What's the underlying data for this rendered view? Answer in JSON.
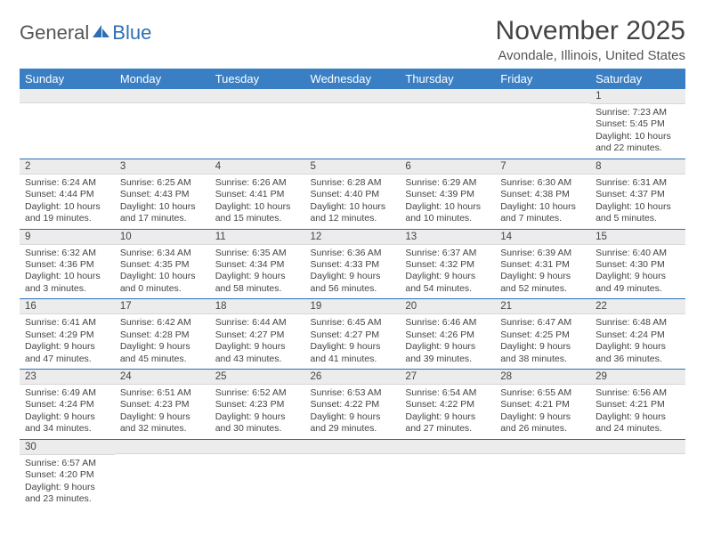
{
  "logo": {
    "part1": "General",
    "part2": "Blue"
  },
  "title": "November 2025",
  "location": "Avondale, Illinois, United States",
  "colors": {
    "header_bg": "#3a7fc4",
    "header_text": "#ffffff",
    "daynum_bg": "#ececec",
    "row_divider": "#2c6fb5",
    "logo_blue": "#2c6fb5"
  },
  "day_names": [
    "Sunday",
    "Monday",
    "Tuesday",
    "Wednesday",
    "Thursday",
    "Friday",
    "Saturday"
  ],
  "weeks": [
    [
      {
        "n": "",
        "sr": "",
        "ss": "",
        "dl": ""
      },
      {
        "n": "",
        "sr": "",
        "ss": "",
        "dl": ""
      },
      {
        "n": "",
        "sr": "",
        "ss": "",
        "dl": ""
      },
      {
        "n": "",
        "sr": "",
        "ss": "",
        "dl": ""
      },
      {
        "n": "",
        "sr": "",
        "ss": "",
        "dl": ""
      },
      {
        "n": "",
        "sr": "",
        "ss": "",
        "dl": ""
      },
      {
        "n": "1",
        "sr": "Sunrise: 7:23 AM",
        "ss": "Sunset: 5:45 PM",
        "dl": "Daylight: 10 hours and 22 minutes."
      }
    ],
    [
      {
        "n": "2",
        "sr": "Sunrise: 6:24 AM",
        "ss": "Sunset: 4:44 PM",
        "dl": "Daylight: 10 hours and 19 minutes."
      },
      {
        "n": "3",
        "sr": "Sunrise: 6:25 AM",
        "ss": "Sunset: 4:43 PM",
        "dl": "Daylight: 10 hours and 17 minutes."
      },
      {
        "n": "4",
        "sr": "Sunrise: 6:26 AM",
        "ss": "Sunset: 4:41 PM",
        "dl": "Daylight: 10 hours and 15 minutes."
      },
      {
        "n": "5",
        "sr": "Sunrise: 6:28 AM",
        "ss": "Sunset: 4:40 PM",
        "dl": "Daylight: 10 hours and 12 minutes."
      },
      {
        "n": "6",
        "sr": "Sunrise: 6:29 AM",
        "ss": "Sunset: 4:39 PM",
        "dl": "Daylight: 10 hours and 10 minutes."
      },
      {
        "n": "7",
        "sr": "Sunrise: 6:30 AM",
        "ss": "Sunset: 4:38 PM",
        "dl": "Daylight: 10 hours and 7 minutes."
      },
      {
        "n": "8",
        "sr": "Sunrise: 6:31 AM",
        "ss": "Sunset: 4:37 PM",
        "dl": "Daylight: 10 hours and 5 minutes."
      }
    ],
    [
      {
        "n": "9",
        "sr": "Sunrise: 6:32 AM",
        "ss": "Sunset: 4:36 PM",
        "dl": "Daylight: 10 hours and 3 minutes."
      },
      {
        "n": "10",
        "sr": "Sunrise: 6:34 AM",
        "ss": "Sunset: 4:35 PM",
        "dl": "Daylight: 10 hours and 0 minutes."
      },
      {
        "n": "11",
        "sr": "Sunrise: 6:35 AM",
        "ss": "Sunset: 4:34 PM",
        "dl": "Daylight: 9 hours and 58 minutes."
      },
      {
        "n": "12",
        "sr": "Sunrise: 6:36 AM",
        "ss": "Sunset: 4:33 PM",
        "dl": "Daylight: 9 hours and 56 minutes."
      },
      {
        "n": "13",
        "sr": "Sunrise: 6:37 AM",
        "ss": "Sunset: 4:32 PM",
        "dl": "Daylight: 9 hours and 54 minutes."
      },
      {
        "n": "14",
        "sr": "Sunrise: 6:39 AM",
        "ss": "Sunset: 4:31 PM",
        "dl": "Daylight: 9 hours and 52 minutes."
      },
      {
        "n": "15",
        "sr": "Sunrise: 6:40 AM",
        "ss": "Sunset: 4:30 PM",
        "dl": "Daylight: 9 hours and 49 minutes."
      }
    ],
    [
      {
        "n": "16",
        "sr": "Sunrise: 6:41 AM",
        "ss": "Sunset: 4:29 PM",
        "dl": "Daylight: 9 hours and 47 minutes."
      },
      {
        "n": "17",
        "sr": "Sunrise: 6:42 AM",
        "ss": "Sunset: 4:28 PM",
        "dl": "Daylight: 9 hours and 45 minutes."
      },
      {
        "n": "18",
        "sr": "Sunrise: 6:44 AM",
        "ss": "Sunset: 4:27 PM",
        "dl": "Daylight: 9 hours and 43 minutes."
      },
      {
        "n": "19",
        "sr": "Sunrise: 6:45 AM",
        "ss": "Sunset: 4:27 PM",
        "dl": "Daylight: 9 hours and 41 minutes."
      },
      {
        "n": "20",
        "sr": "Sunrise: 6:46 AM",
        "ss": "Sunset: 4:26 PM",
        "dl": "Daylight: 9 hours and 39 minutes."
      },
      {
        "n": "21",
        "sr": "Sunrise: 6:47 AM",
        "ss": "Sunset: 4:25 PM",
        "dl": "Daylight: 9 hours and 38 minutes."
      },
      {
        "n": "22",
        "sr": "Sunrise: 6:48 AM",
        "ss": "Sunset: 4:24 PM",
        "dl": "Daylight: 9 hours and 36 minutes."
      }
    ],
    [
      {
        "n": "23",
        "sr": "Sunrise: 6:49 AM",
        "ss": "Sunset: 4:24 PM",
        "dl": "Daylight: 9 hours and 34 minutes."
      },
      {
        "n": "24",
        "sr": "Sunrise: 6:51 AM",
        "ss": "Sunset: 4:23 PM",
        "dl": "Daylight: 9 hours and 32 minutes."
      },
      {
        "n": "25",
        "sr": "Sunrise: 6:52 AM",
        "ss": "Sunset: 4:23 PM",
        "dl": "Daylight: 9 hours and 30 minutes."
      },
      {
        "n": "26",
        "sr": "Sunrise: 6:53 AM",
        "ss": "Sunset: 4:22 PM",
        "dl": "Daylight: 9 hours and 29 minutes."
      },
      {
        "n": "27",
        "sr": "Sunrise: 6:54 AM",
        "ss": "Sunset: 4:22 PM",
        "dl": "Daylight: 9 hours and 27 minutes."
      },
      {
        "n": "28",
        "sr": "Sunrise: 6:55 AM",
        "ss": "Sunset: 4:21 PM",
        "dl": "Daylight: 9 hours and 26 minutes."
      },
      {
        "n": "29",
        "sr": "Sunrise: 6:56 AM",
        "ss": "Sunset: 4:21 PM",
        "dl": "Daylight: 9 hours and 24 minutes."
      }
    ],
    [
      {
        "n": "30",
        "sr": "Sunrise: 6:57 AM",
        "ss": "Sunset: 4:20 PM",
        "dl": "Daylight: 9 hours and 23 minutes."
      },
      {
        "n": "",
        "sr": "",
        "ss": "",
        "dl": ""
      },
      {
        "n": "",
        "sr": "",
        "ss": "",
        "dl": ""
      },
      {
        "n": "",
        "sr": "",
        "ss": "",
        "dl": ""
      },
      {
        "n": "",
        "sr": "",
        "ss": "",
        "dl": ""
      },
      {
        "n": "",
        "sr": "",
        "ss": "",
        "dl": ""
      },
      {
        "n": "",
        "sr": "",
        "ss": "",
        "dl": ""
      }
    ]
  ]
}
